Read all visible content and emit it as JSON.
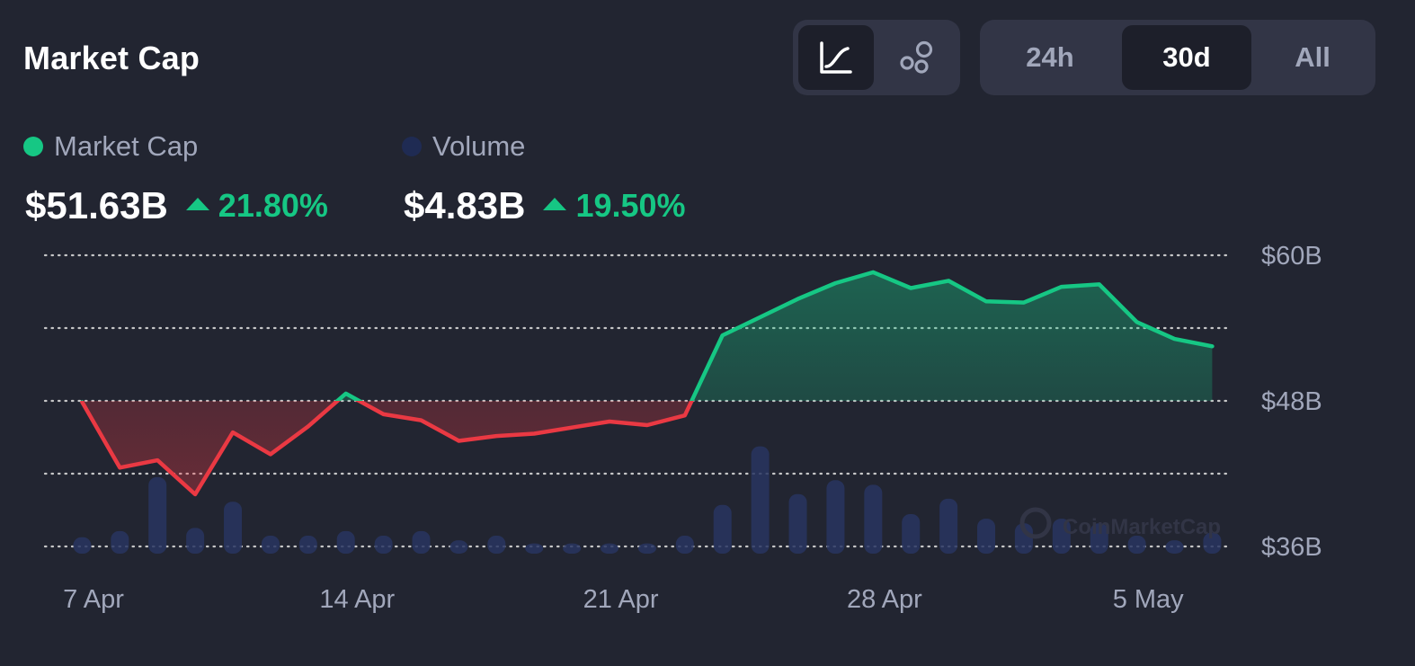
{
  "header": {
    "title": "Market Cap",
    "chart_type_buttons": [
      {
        "icon": "line-chart-icon",
        "active": true
      },
      {
        "icon": "bubbles-icon",
        "active": false
      }
    ],
    "ranges": [
      {
        "label": "24h",
        "active": false
      },
      {
        "label": "30d",
        "active": true
      },
      {
        "label": "All",
        "active": false
      }
    ]
  },
  "legend": {
    "market_cap": {
      "label": "Market Cap",
      "color": "#16c784",
      "value": "$51.63B",
      "change": "21.80%"
    },
    "volume": {
      "label": "Volume",
      "color": "#1f2b53",
      "value": "$4.83B",
      "change": "19.50%"
    }
  },
  "colors": {
    "up": "#16c784",
    "down": "#ea3943",
    "grid": "#d8d8d8",
    "volume_bar": "#283560"
  },
  "watermark": "CoinMarketCap",
  "chart_data": {
    "type": "line",
    "baseline": 48,
    "ylim": [
      36,
      60
    ],
    "y_ticks": [
      "$60B",
      "$48B",
      "$36B"
    ],
    "y_tick_values": [
      60,
      48,
      36
    ],
    "grid": true,
    "x_ticks": [
      {
        "label": "7 Apr",
        "day": 7
      },
      {
        "label": "14 Apr",
        "day": 14
      },
      {
        "label": "21 Apr",
        "day": 21
      },
      {
        "label": "28 Apr",
        "day": 28
      },
      {
        "label": "5 May",
        "day": 35
      }
    ],
    "series": [
      {
        "name": "Market Cap",
        "x": [
          6.7,
          7.7,
          8.7,
          9.7,
          10.7,
          11.7,
          12.7,
          13.7,
          14.7,
          15.7,
          16.7,
          17.7,
          18.7,
          19.7,
          20.7,
          21.7,
          22.7,
          23.7,
          24.7,
          25.7,
          26.7,
          27.7,
          28.7,
          29.7,
          30.7,
          31.7,
          32.7,
          33.7,
          34.7,
          35.7,
          36.7
        ],
        "values": [
          47.9,
          42.5,
          43.1,
          40.3,
          45.4,
          43.6,
          45.9,
          48.6,
          46.9,
          46.4,
          44.7,
          45.1,
          45.3,
          45.8,
          46.3,
          46.0,
          46.8,
          53.4,
          54.9,
          56.4,
          57.7,
          58.6,
          57.3,
          57.9,
          56.2,
          56.1,
          57.4,
          57.6,
          54.5,
          53.1,
          52.5
        ]
      }
    ],
    "volume_series": {
      "name": "Volume",
      "x": [
        6.7,
        7.7,
        8.7,
        9.7,
        10.7,
        11.7,
        12.7,
        13.7,
        14.7,
        15.7,
        16.7,
        17.7,
        18.7,
        19.7,
        20.7,
        21.7,
        22.7,
        23.7,
        24.7,
        25.7,
        26.7,
        27.7,
        28.7,
        29.7,
        30.7,
        31.7,
        32.7,
        33.7,
        34.7,
        35.7,
        36.7
      ],
      "values": [
        0.6,
        1.0,
        4.5,
        1.2,
        2.9,
        0.7,
        0.7,
        1.0,
        0.7,
        1.0,
        0.4,
        0.7,
        0.2,
        0.2,
        0.2,
        0.2,
        0.7,
        2.7,
        6.5,
        3.4,
        4.3,
        4.0,
        2.1,
        3.1,
        1.8,
        1.5,
        1.8,
        1.5,
        0.7,
        0.4,
        0.9
      ],
      "ylim": [
        0,
        14
      ]
    }
  }
}
